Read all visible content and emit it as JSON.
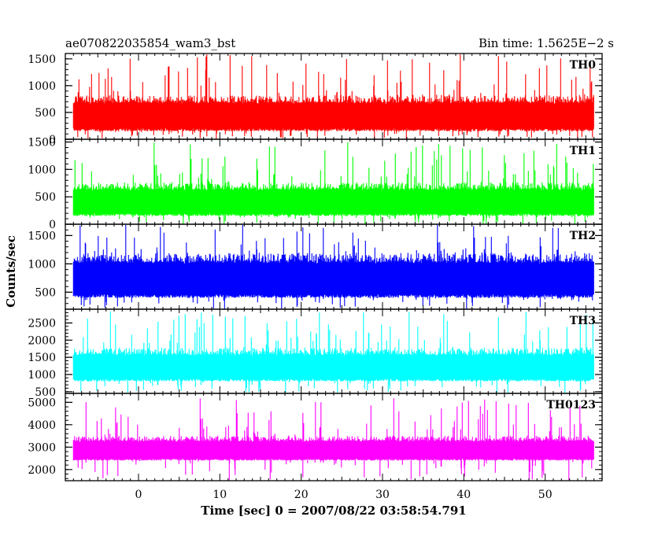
{
  "header": {
    "title": "ae070822035854_wam3_bst",
    "bin_time": "Bin time: 1.5625E−2 s"
  },
  "chart_data": {
    "type": "line",
    "xlabel": "Time [sec] 0 = 2007/08/22 03:58:54.791",
    "ylabel": "Counts/sec",
    "xlim": [
      -9,
      57
    ],
    "x_data_range": [
      -8,
      56
    ],
    "xticks": [
      0,
      10,
      20,
      30,
      40,
      50
    ],
    "panels": [
      {
        "name": "TH0",
        "color": "#ff0000",
        "ylim": [
          0,
          1600
        ],
        "yticks": [
          0,
          500,
          1000,
          1500
        ],
        "typical_range": [
          150,
          700
        ],
        "peak_max": 1600
      },
      {
        "name": "TH1",
        "color": "#00ff00",
        "ylim": [
          0,
          1550
        ],
        "yticks": [
          0,
          500,
          1000,
          1500
        ],
        "typical_range": [
          150,
          650
        ],
        "peak_max": 1500
      },
      {
        "name": "TH2",
        "color": "#0000ff",
        "ylim": [
          200,
          1700
        ],
        "yticks": [
          500,
          1000,
          1500
        ],
        "typical_range": [
          400,
          1050
        ],
        "peak_max": 1700
      },
      {
        "name": "TH3",
        "color": "#00ffff",
        "ylim": [
          450,
          2900
        ],
        "yticks": [
          500,
          1000,
          1500,
          2000,
          2500
        ],
        "typical_range": [
          800,
          1600
        ],
        "peak_max": 2850
      },
      {
        "name": "TH0123",
        "color": "#ff00ff",
        "ylim": [
          1500,
          5400
        ],
        "yticks": [
          2000,
          3000,
          4000,
          5000
        ],
        "typical_range": [
          2400,
          3300
        ],
        "peak_max": 5200
      }
    ]
  }
}
